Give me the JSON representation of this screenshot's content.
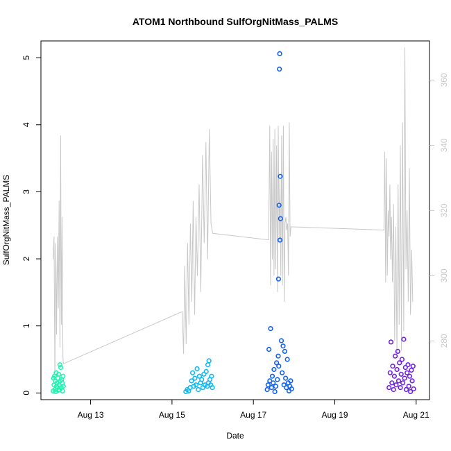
{
  "chart_data": {
    "type": "scatter",
    "title": "ATOM1 Northbound SulfOrgNitMass_PALMS",
    "xlabel": "Date",
    "ylabel": "SulfOrgNitMass_PALMS",
    "x_unit": "days",
    "x_tick_labels": [
      "Aug 13",
      "Aug 15",
      "Aug 17",
      "Aug 19",
      "Aug 21"
    ],
    "x_ticks": [
      "2016-08-13",
      "2016-08-15",
      "2016-08-17",
      "2016-08-19",
      "2016-08-21"
    ],
    "xlim": [
      "2016-08-11T18:42",
      "2016-08-21T07:52"
    ],
    "y_ticks": [
      0,
      1,
      2,
      3,
      4,
      5
    ],
    "ylim": [
      -0.1,
      5.25
    ],
    "y2_ticks": [
      280,
      300,
      320,
      340,
      360
    ],
    "y2lim": [
      262,
      372
    ],
    "grid": false,
    "series": [
      {
        "color": "#22f5b0",
        "points": [
          [
            "2016-08-12T01:55",
            0.03
          ],
          [
            "2016-08-12T02:10",
            0.22
          ],
          [
            "2016-08-12T02:25",
            0.12
          ],
          [
            "2016-08-12T02:40",
            0.25
          ],
          [
            "2016-08-12T02:55",
            0.05
          ],
          [
            "2016-08-12T03:10",
            0.18
          ],
          [
            "2016-08-12T03:25",
            0.02
          ],
          [
            "2016-08-12T03:40",
            0.3
          ],
          [
            "2016-08-12T03:55",
            0.1
          ],
          [
            "2016-08-12T04:10",
            0.15
          ],
          [
            "2016-08-12T04:25",
            0.08
          ],
          [
            "2016-08-12T04:40",
            0.22
          ],
          [
            "2016-08-12T04:55",
            0.04
          ],
          [
            "2016-08-12T05:10",
            0.28
          ],
          [
            "2016-08-12T05:25",
            0.12
          ],
          [
            "2016-08-12T05:40",
            0.05
          ],
          [
            "2016-08-12T05:55",
            0.42
          ],
          [
            "2016-08-12T06:10",
            0.18
          ],
          [
            "2016-08-12T06:25",
            0.38
          ],
          [
            "2016-08-12T06:40",
            0.08
          ],
          [
            "2016-08-12T06:55",
            0.2
          ],
          [
            "2016-08-12T07:10",
            0.15
          ],
          [
            "2016-08-12T07:25",
            0.03
          ],
          [
            "2016-08-12T07:40",
            0.25
          ],
          [
            "2016-08-12T07:55",
            0.1
          ]
        ]
      },
      {
        "color": "#10b8f0",
        "points": [
          [
            "2016-08-15T08:10",
            0.02
          ],
          [
            "2016-08-15T09:00",
            0.05
          ],
          [
            "2016-08-15T09:50",
            0.03
          ],
          [
            "2016-08-15T10:40",
            0.08
          ],
          [
            "2016-08-15T11:30",
            0.18
          ],
          [
            "2016-08-15T12:10",
            0.3
          ],
          [
            "2016-08-15T12:50",
            0.1
          ],
          [
            "2016-08-15T13:30",
            0.22
          ],
          [
            "2016-08-15T14:10",
            0.12
          ],
          [
            "2016-08-15T14:50",
            0.36
          ],
          [
            "2016-08-15T15:30",
            0.05
          ],
          [
            "2016-08-15T16:10",
            0.25
          ],
          [
            "2016-08-15T16:50",
            0.15
          ],
          [
            "2016-08-15T17:30",
            0.2
          ],
          [
            "2016-08-15T18:10",
            0.08
          ],
          [
            "2016-08-15T18:50",
            0.28
          ],
          [
            "2016-08-15T19:30",
            0.12
          ],
          [
            "2016-08-15T20:10",
            0.32
          ],
          [
            "2016-08-15T20:50",
            0.1
          ],
          [
            "2016-08-15T21:10",
            0.42
          ],
          [
            "2016-08-15T21:30",
            0.15
          ],
          [
            "2016-08-15T21:50",
            0.48
          ],
          [
            "2016-08-15T22:20",
            0.2
          ],
          [
            "2016-08-15T22:50",
            0.12
          ],
          [
            "2016-08-15T23:20",
            0.25
          ],
          [
            "2016-08-15T23:50",
            0.08
          ]
        ]
      },
      {
        "color": "#1060f0",
        "points": [
          [
            "2016-08-17T08:10",
            0.05
          ],
          [
            "2016-08-17T08:40",
            0.12
          ],
          [
            "2016-08-17T09:10",
            0.65
          ],
          [
            "2016-08-17T09:40",
            0.18
          ],
          [
            "2016-08-17T10:10",
            0.96
          ],
          [
            "2016-08-17T10:40",
            0.08
          ],
          [
            "2016-08-17T11:10",
            0.25
          ],
          [
            "2016-08-17T11:40",
            0.15
          ],
          [
            "2016-08-17T12:10",
            0.35
          ],
          [
            "2016-08-17T12:40",
            0.02
          ],
          [
            "2016-08-17T13:10",
            0.1
          ],
          [
            "2016-08-17T13:40",
            0.45
          ],
          [
            "2016-08-17T14:10",
            0.2
          ],
          [
            "2016-08-17T14:40",
            0.55
          ],
          [
            "2016-08-17T14:50",
            1.7
          ],
          [
            "2016-08-17T15:00",
            0.4
          ],
          [
            "2016-08-17T15:10",
            2.8
          ],
          [
            "2016-08-17T15:20",
            4.83
          ],
          [
            "2016-08-17T15:30",
            5.06
          ],
          [
            "2016-08-17T15:40",
            2.28
          ],
          [
            "2016-08-17T15:50",
            3.23
          ],
          [
            "2016-08-17T16:00",
            2.6
          ],
          [
            "2016-08-17T16:30",
            0.78
          ],
          [
            "2016-08-17T17:00",
            0.3
          ],
          [
            "2016-08-17T17:30",
            0.7
          ],
          [
            "2016-08-17T18:00",
            0.12
          ],
          [
            "2016-08-17T18:30",
            0.62
          ],
          [
            "2016-08-17T19:00",
            0.22
          ],
          [
            "2016-08-17T19:30",
            0.08
          ],
          [
            "2016-08-17T20:00",
            0.5
          ],
          [
            "2016-08-17T20:30",
            0.15
          ],
          [
            "2016-08-17T21:00",
            0.03
          ],
          [
            "2016-08-17T21:30",
            0.1
          ],
          [
            "2016-08-17T22:00",
            0.18
          ],
          [
            "2016-08-17T22:30",
            0.06
          ]
        ]
      },
      {
        "color": "#7020e0",
        "points": [
          [
            "2016-08-20T08:00",
            0.08
          ],
          [
            "2016-08-20T08:40",
            0.3
          ],
          [
            "2016-08-20T09:10",
            0.76
          ],
          [
            "2016-08-20T09:40",
            0.15
          ],
          [
            "2016-08-20T10:10",
            0.4
          ],
          [
            "2016-08-20T10:40",
            0.05
          ],
          [
            "2016-08-20T11:10",
            0.25
          ],
          [
            "2016-08-20T11:40",
            0.55
          ],
          [
            "2016-08-20T12:10",
            0.12
          ],
          [
            "2016-08-20T12:40",
            0.35
          ],
          [
            "2016-08-20T13:10",
            0.62
          ],
          [
            "2016-08-20T13:40",
            0.18
          ],
          [
            "2016-08-20T14:10",
            0.45
          ],
          [
            "2016-08-20T14:40",
            0.08
          ],
          [
            "2016-08-20T15:10",
            0.28
          ],
          [
            "2016-08-20T15:40",
            0.5
          ],
          [
            "2016-08-20T16:10",
            0.15
          ],
          [
            "2016-08-20T16:40",
            0.8
          ],
          [
            "2016-08-20T17:10",
            0.22
          ],
          [
            "2016-08-20T17:40",
            0.38
          ],
          [
            "2016-08-20T18:10",
            0.05
          ],
          [
            "2016-08-20T18:40",
            0.3
          ],
          [
            "2016-08-20T19:10",
            0.42
          ],
          [
            "2016-08-20T19:40",
            0.1
          ],
          [
            "2016-08-20T20:10",
            0.25
          ],
          [
            "2016-08-20T20:40",
            0.02
          ],
          [
            "2016-08-20T21:10",
            0.34
          ],
          [
            "2016-08-20T21:40",
            0.18
          ],
          [
            "2016-08-20T22:10",
            0.4
          ],
          [
            "2016-08-20T22:30",
            0.06
          ]
        ]
      }
    ],
    "secondary_line": {
      "color": "#c8c8c8",
      "axis": "right",
      "points": [
        [
          "2016-08-12T01:55",
          305
        ],
        [
          "2016-08-12T02:25",
          312
        ],
        [
          "2016-08-12T02:55",
          268
        ],
        [
          "2016-08-12T03:25",
          310
        ],
        [
          "2016-08-12T03:55",
          282
        ],
        [
          "2016-08-12T04:25",
          312
        ],
        [
          "2016-08-12T04:55",
          290
        ],
        [
          "2016-08-12T05:25",
          323
        ],
        [
          "2016-08-12T05:55",
          278
        ],
        [
          "2016-08-12T06:20",
          343
        ],
        [
          "2016-08-12T06:45",
          285
        ],
        [
          "2016-08-12T07:10",
          318
        ],
        [
          "2016-08-12T07:40",
          275
        ],
        [
          "2016-08-12T07:55",
          273
        ],
        [
          "2016-08-15T06:00",
          289
        ],
        [
          "2016-08-15T06:50",
          276
        ],
        [
          "2016-08-15T07:30",
          303
        ],
        [
          "2016-08-15T08:20",
          279
        ],
        [
          "2016-08-15T09:10",
          310
        ],
        [
          "2016-08-15T10:00",
          285
        ],
        [
          "2016-08-15T10:50",
          316
        ],
        [
          "2016-08-15T11:40",
          292
        ],
        [
          "2016-08-15T12:30",
          323
        ],
        [
          "2016-08-15T13:20",
          288
        ],
        [
          "2016-08-15T14:10",
          318
        ],
        [
          "2016-08-15T15:00",
          300
        ],
        [
          "2016-08-15T16:00",
          328
        ],
        [
          "2016-08-15T17:00",
          295
        ],
        [
          "2016-08-15T18:00",
          337
        ],
        [
          "2016-08-15T19:00",
          310
        ],
        [
          "2016-08-15T20:00",
          341
        ],
        [
          "2016-08-15T21:00",
          305
        ],
        [
          "2016-08-15T22:00",
          345
        ],
        [
          "2016-08-15T23:00",
          316
        ],
        [
          "2016-08-16T00:00",
          313
        ],
        [
          "2016-08-17T09:00",
          311
        ],
        [
          "2016-08-17T09:40",
          346
        ],
        [
          "2016-08-17T10:10",
          297
        ],
        [
          "2016-08-17T10:40",
          338
        ],
        [
          "2016-08-17T11:10",
          305
        ],
        [
          "2016-08-17T11:40",
          342
        ],
        [
          "2016-08-17T12:10",
          300
        ],
        [
          "2016-08-17T12:40",
          345
        ],
        [
          "2016-08-17T13:10",
          302
        ],
        [
          "2016-08-17T13:40",
          340
        ],
        [
          "2016-08-17T14:10",
          295
        ],
        [
          "2016-08-17T14:40",
          346
        ],
        [
          "2016-08-17T15:10",
          310
        ],
        [
          "2016-08-17T15:40",
          330
        ],
        [
          "2016-08-17T16:10",
          300
        ],
        [
          "2016-08-17T16:40",
          343
        ],
        [
          "2016-08-17T17:10",
          297
        ],
        [
          "2016-08-17T17:40",
          346
        ],
        [
          "2016-08-17T18:10",
          292
        ],
        [
          "2016-08-17T18:40",
          316
        ],
        [
          "2016-08-17T19:10",
          318
        ],
        [
          "2016-08-17T19:40",
          314
        ],
        [
          "2016-08-17T20:10",
          316
        ],
        [
          "2016-08-17T20:40",
          300
        ],
        [
          "2016-08-17T21:10",
          347
        ],
        [
          "2016-08-17T21:40",
          312
        ],
        [
          "2016-08-17T22:10",
          315
        ],
        [
          "2016-08-20T05:00",
          314
        ],
        [
          "2016-08-20T05:30",
          338
        ],
        [
          "2016-08-20T06:00",
          298
        ],
        [
          "2016-08-20T06:30",
          336
        ],
        [
          "2016-08-20T07:00",
          300
        ],
        [
          "2016-08-20T07:30",
          320
        ],
        [
          "2016-08-20T08:00",
          312
        ],
        [
          "2016-08-20T08:30",
          328
        ],
        [
          "2016-08-20T09:00",
          305
        ],
        [
          "2016-08-20T09:30",
          318
        ],
        [
          "2016-08-20T10:00",
          298
        ],
        [
          "2016-08-20T10:40",
          322
        ],
        [
          "2016-08-20T11:20",
          280
        ],
        [
          "2016-08-20T12:00",
          315
        ],
        [
          "2016-08-20T12:40",
          276
        ],
        [
          "2016-08-20T13:20",
          328
        ],
        [
          "2016-08-20T14:00",
          285
        ],
        [
          "2016-08-20T14:40",
          340
        ],
        [
          "2016-08-20T15:20",
          277
        ],
        [
          "2016-08-20T16:00",
          347
        ],
        [
          "2016-08-20T16:40",
          283
        ],
        [
          "2016-08-20T17:20",
          370
        ],
        [
          "2016-08-20T18:00",
          302
        ],
        [
          "2016-08-20T18:40",
          320
        ],
        [
          "2016-08-20T19:20",
          292
        ],
        [
          "2016-08-20T20:00",
          333
        ],
        [
          "2016-08-20T20:40",
          288
        ],
        [
          "2016-08-20T21:20",
          308
        ],
        [
          "2016-08-20T22:00",
          292
        ]
      ]
    }
  }
}
